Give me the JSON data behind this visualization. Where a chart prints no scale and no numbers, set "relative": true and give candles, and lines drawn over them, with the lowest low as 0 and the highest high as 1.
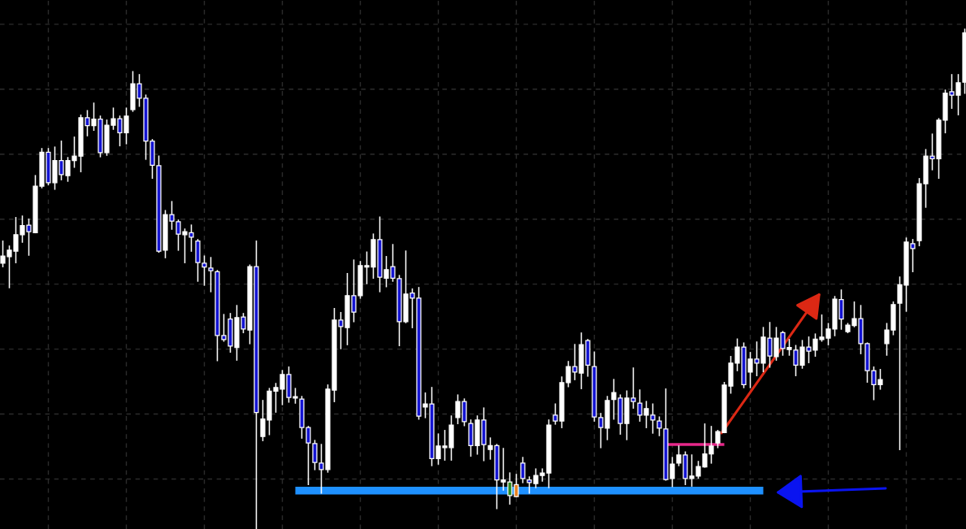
{
  "chart_data": {
    "type": "candlestick",
    "relative": true,
    "grid": true,
    "tick_labels": false,
    "categories": [
      null,
      null,
      null,
      null,
      null,
      null,
      null,
      null,
      null,
      null,
      null,
      null,
      null,
      null,
      null,
      null,
      null,
      null,
      null,
      null,
      null,
      null,
      null,
      null,
      null,
      null,
      null,
      null,
      null,
      null,
      null,
      null,
      null,
      null,
      null,
      null,
      null,
      null,
      null,
      null,
      null,
      null,
      null,
      null,
      null,
      null,
      null,
      null,
      null,
      null,
      null,
      null,
      null,
      null,
      null,
      null,
      null,
      null,
      null,
      null,
      null,
      null,
      null,
      null,
      null,
      null,
      null,
      null,
      null,
      null,
      null,
      null,
      null,
      null,
      null,
      null,
      null,
      null,
      null,
      null,
      null,
      null,
      null,
      null,
      null,
      null,
      null,
      null,
      null,
      null,
      null,
      null,
      null,
      null,
      null,
      null,
      null,
      null,
      null,
      null,
      null,
      null,
      null,
      null,
      null,
      null,
      null,
      null,
      null,
      null,
      null,
      null,
      null,
      null,
      null,
      null,
      null,
      null,
      null,
      null,
      null,
      null,
      null,
      null,
      null,
      null,
      null,
      null,
      null,
      null,
      null,
      null,
      null,
      null,
      null,
      null,
      null,
      null,
      null,
      null,
      null,
      null,
      null,
      null,
      null,
      null,
      null,
      null,
      null
    ],
    "series": [
      {
        "color": "#ffffff",
        "colors": [
          "#ffffff",
          "#ffffff",
          "#ffffff",
          "#ffffff",
          "#1414d2",
          "#ffffff",
          "#ffffff",
          "#1414d2",
          "#ffffff",
          "#1414d2",
          "#ffffff",
          "#ffffff",
          "#ffffff",
          "#1414d2",
          "#ffffff",
          "#1414d2",
          "#ffffff",
          "#ffffff",
          "#1414d2",
          "#ffffff",
          "#ffffff",
          "#1414d2",
          "#1414d2",
          "#1414d2",
          "#1414d2",
          "#ffffff",
          "#1414d2",
          "#1414d2",
          "#ffffff",
          "#1414d2",
          "#1414d2",
          "#1414d2",
          "#1414d2",
          "#1414d2",
          "#1414d2",
          "#1414d2",
          "#ffffff",
          "#1414d2",
          "#ffffff",
          "#1414d2",
          "#ffffff",
          "#ffffff",
          "#ffffff",
          "#ffffff",
          "#1414d2",
          "#ffffff",
          "#1414d2",
          "#1414d2",
          "#1414d2",
          "#1414d2",
          "#ffffff",
          "#ffffff",
          "#1414d2",
          "#ffffff",
          "#1414d2",
          "#ffffff",
          "#ffffff",
          "#ffffff",
          "#1414d2",
          "#ffffff",
          "#1414d2",
          "#1414d2",
          "#ffffff",
          "#1414d2",
          "#1414d2",
          "#ffffff",
          "#1414d2",
          "#ffffff",
          "#ffffff",
          "#ffffff",
          "#ffffff",
          "#1414d2",
          "#1414d2",
          "#ffffff",
          "#1414d2",
          "#ffffff",
          "#1414d2",
          "#ffffff",
          "#2a8a1e",
          "#e8821e",
          "#1414d2",
          "#1414d2",
          "#ffffff",
          "#ffffff",
          "#ffffff",
          "#1414d2",
          "#ffffff",
          "#ffffff",
          "#1414d2",
          "#ffffff",
          "#1414d2",
          "#1414d2",
          "#1414d2",
          "#ffffff",
          "#ffffff",
          "#1414d2",
          "#ffffff",
          "#1414d2",
          "#1414d2",
          "#ffffff",
          "#1414d2",
          "#1414d2",
          "#1414d2",
          "#ffffff",
          "#ffffff",
          "#1414d2",
          "#ffffff",
          "#ffffff",
          "#ffffff",
          "#ffffff",
          "#ffffff",
          "#ffffff",
          "#ffffff",
          "#ffffff",
          "#1414d2",
          "#ffffff",
          "#1414d2",
          "#ffffff",
          "#1414d2",
          "#ffffff",
          "#1414d2",
          "#ffffff",
          "#1414d2",
          "#ffffff",
          "#1414d2",
          "#ffffff",
          "#ffffff",
          "#ffffff",
          "#ffffff",
          "#1414d2",
          "#ffffff",
          "#ffffff",
          "#1414d2",
          "#1414d2",
          "#1414d2",
          "#ffffff",
          "#ffffff",
          "#ffffff",
          "#ffffff",
          "#ffffff",
          "#1414d2",
          "#ffffff",
          "#ffffff",
          "#1414d2",
          "#ffffff",
          "#ffffff",
          "#1414d2",
          "#ffffff",
          "#ffffff"
        ],
        "ohlc": [
          [
            0.532,
            0.576,
            0.525,
            0.546
          ],
          [
            0.545,
            0.566,
            0.483,
            0.558
          ],
          [
            0.556,
            0.623,
            0.533,
            0.589
          ],
          [
            0.589,
            0.626,
            0.574,
            0.607
          ],
          [
            0.608,
            0.62,
            0.548,
            0.595
          ],
          [
            0.593,
            0.707,
            0.593,
            0.686
          ],
          [
            0.686,
            0.761,
            0.683,
            0.754
          ],
          [
            0.754,
            0.761,
            0.689,
            0.693
          ],
          [
            0.693,
            0.764,
            0.68,
            0.737
          ],
          [
            0.737,
            0.776,
            0.699,
            0.709
          ],
          [
            0.707,
            0.743,
            0.696,
            0.737
          ],
          [
            0.737,
            0.784,
            0.724,
            0.746
          ],
          [
            0.746,
            0.828,
            0.715,
            0.823
          ],
          [
            0.823,
            0.837,
            0.787,
            0.807
          ],
          [
            0.807,
            0.852,
            0.798,
            0.82
          ],
          [
            0.82,
            0.826,
            0.745,
            0.753
          ],
          [
            0.753,
            0.818,
            0.748,
            0.808
          ],
          [
            0.808,
            0.842,
            0.8,
            0.821
          ],
          [
            0.821,
            0.826,
            0.767,
            0.793
          ],
          [
            0.793,
            0.842,
            0.771,
            0.826
          ],
          [
            0.839,
            0.915,
            0.836,
            0.891
          ],
          [
            0.891,
            0.909,
            0.846,
            0.862
          ],
          [
            0.862,
            0.868,
            0.74,
            0.776
          ],
          [
            0.776,
            0.779,
            0.702,
            0.728
          ],
          [
            0.727,
            0.746,
            0.554,
            0.556
          ],
          [
            0.558,
            0.637,
            0.543,
            0.629
          ],
          [
            0.629,
            0.655,
            0.6,
            0.616
          ],
          [
            0.615,
            0.618,
            0.558,
            0.59
          ],
          [
            0.589,
            0.6,
            0.533,
            0.595
          ],
          [
            0.593,
            0.608,
            0.556,
            0.584
          ],
          [
            0.576,
            0.579,
            0.496,
            0.533
          ],
          [
            0.532,
            0.546,
            0.488,
            0.524
          ],
          [
            0.522,
            0.543,
            0.475,
            0.517
          ],
          [
            0.515,
            0.517,
            0.337,
            0.387
          ],
          [
            0.387,
            0.429,
            0.376,
            0.379
          ],
          [
            0.42,
            0.431,
            0.354,
            0.366
          ],
          [
            0.363,
            0.447,
            0.338,
            0.423
          ],
          [
            0.424,
            0.431,
            0.393,
            0.4
          ],
          [
            0.398,
            0.528,
            0.371,
            0.525
          ],
          [
            0.525,
            0.576,
            0,
            0.233
          ],
          [
            0.185,
            0.257,
            0.177,
            0.22
          ],
          [
            0.218,
            0.281,
            0.189,
            0.276
          ],
          [
            0.276,
            0.291,
            0.234,
            0.283
          ],
          [
            0.28,
            0.317,
            0.249,
            0.309
          ],
          [
            0.309,
            0.324,
            0.254,
            0.263
          ],
          [
            0.262,
            0.281,
            0.252,
            0.265
          ],
          [
            0.26,
            0.265,
            0.182,
            0.203
          ],
          [
            0.203,
            0.205,
            0.089,
            0.172
          ],
          [
            0.171,
            0.177,
            0.119,
            0.133
          ],
          [
            0.132,
            0.169,
            0.072,
            0.119
          ],
          [
            0.119,
            0.288,
            0.114,
            0.28
          ],
          [
            0.278,
            0.441,
            0.255,
            0.418
          ],
          [
            0.418,
            0.433,
            0.361,
            0.405
          ],
          [
            0.403,
            0.511,
            0.369,
            0.467
          ],
          [
            0.467,
            0.538,
            0.415,
            0.434
          ],
          [
            0.467,
            0.535,
            0.462,
            0.527
          ],
          [
            0.524,
            0.554,
            0.491,
            0.527
          ],
          [
            0.524,
            0.59,
            0.502,
            0.579
          ],
          [
            0.579,
            0.624,
            0.475,
            0.504
          ],
          [
            0.502,
            0.545,
            0.485,
            0.519
          ],
          [
            0.525,
            0.569,
            0.496,
            0.502
          ],
          [
            0.501,
            0.507,
            0.367,
            0.415
          ],
          [
            0.415,
            0.556,
            0.413,
            0.47
          ],
          [
            0.472,
            0.48,
            0.403,
            0.462
          ],
          [
            0.462,
            0.483,
            0.22,
            0.226
          ],
          [
            0.244,
            0.272,
            0.223,
            0.25
          ],
          [
            0.25,
            0.283,
            0.127,
            0.141
          ],
          [
            0.141,
            0.19,
            0.13,
            0.166
          ],
          [
            0.163,
            0.197,
            0.138,
            0.166
          ],
          [
            0.163,
            0.226,
            0.138,
            0.208
          ],
          [
            0.223,
            0.268,
            0.211,
            0.255
          ],
          [
            0.255,
            0.26,
            0.207,
            0.215
          ],
          [
            0.211,
            0.218,
            0.146,
            0.167
          ],
          [
            0.167,
            0.226,
            0.15,
            0.218
          ],
          [
            0.218,
            0.242,
            0.137,
            0.169
          ],
          [
            0.159,
            0.182,
            0.14,
            0.167
          ],
          [
            0.167,
            0.169,
            0.041,
            0.098
          ],
          [
            0.094,
            0.161,
            0.078,
            0.098
          ],
          [
            0.094,
            0.112,
            0.05,
            0.067
          ],
          [
            0.065,
            0.109,
            0.065,
            0.089
          ],
          [
            0.132,
            0.143,
            0.093,
            0.101
          ],
          [
            0.098,
            0.104,
            0.072,
            0.093
          ],
          [
            0.091,
            0.12,
            0.083,
            0.107
          ],
          [
            0.107,
            0.12,
            0.096,
            0.112
          ],
          [
            0.112,
            0.218,
            0.083,
            0.208
          ],
          [
            0.228,
            0.25,
            0.21,
            0.216
          ],
          [
            0.216,
            0.304,
            0.203,
            0.293
          ],
          [
            0.293,
            0.335,
            0.285,
            0.325
          ],
          [
            0.325,
            0.369,
            0.299,
            0.314
          ],
          [
            0.312,
            0.392,
            0.281,
            0.369
          ],
          [
            0.377,
            0.379,
            0.306,
            0.328
          ],
          [
            0.325,
            0.354,
            0.216,
            0.224
          ],
          [
            0.223,
            0.231,
            0.163,
            0.203
          ],
          [
            0.202,
            0.265,
            0.179,
            0.257
          ],
          [
            0.259,
            0.299,
            0.22,
            0.273
          ],
          [
            0.262,
            0.268,
            0.19,
            0.211
          ],
          [
            0.211,
            0.276,
            0.179,
            0.262
          ],
          [
            0.262,
            0.322,
            0.242,
            0.255
          ],
          [
            0.252,
            0.278,
            0.216,
            0.228
          ],
          [
            0.228,
            0.255,
            0.203,
            0.241
          ],
          [
            0.228,
            0.25,
            0.192,
            0.218
          ],
          [
            0.216,
            0.224,
            0.187,
            0.202
          ],
          [
            0.2,
            0.28,
            0.098,
            0.099
          ],
          [
            0.101,
            0.143,
            0.085,
            0.13
          ],
          [
            0.132,
            0.166,
            0.127,
            0.148
          ],
          [
            0.148,
            0.154,
            0.089,
            0.101
          ],
          [
            0.101,
            0.148,
            0.086,
            0.106
          ],
          [
            0.106,
            0.135,
            0.102,
            0.125
          ],
          [
            0.124,
            0.21,
            0.124,
            0.15
          ],
          [
            0.15,
            0.205,
            0.132,
            0.166
          ],
          [
            0.172,
            0.197,
            0.163,
            0.195
          ],
          [
            0.193,
            0.293,
            0.193,
            0.288
          ],
          [
            0.286,
            0.345,
            0.272,
            0.332
          ],
          [
            0.332,
            0.38,
            0.317,
            0.364
          ],
          [
            0.364,
            0.372,
            0.283,
            0.289
          ],
          [
            0.314,
            0.353,
            0.283,
            0.34
          ],
          [
            0.34,
            0.374,
            0.307,
            0.332
          ],
          [
            0.332,
            0.403,
            0.315,
            0.384
          ],
          [
            0.382,
            0.413,
            0.324,
            0.346
          ],
          [
            0.345,
            0.403,
            0.338,
            0.382
          ],
          [
            0.393,
            0.395,
            0.348,
            0.361
          ],
          [
            0.359,
            0.379,
            0.348,
            0.363
          ],
          [
            0.358,
            0.367,
            0.307,
            0.328
          ],
          [
            0.328,
            0.377,
            0.322,
            0.364
          ],
          [
            0.364,
            0.384,
            0.333,
            0.356
          ],
          [
            0.358,
            0.39,
            0.346,
            0.38
          ],
          [
            0.379,
            0.428,
            0.376,
            0.384
          ],
          [
            0.382,
            0.411,
            0.369,
            0.4
          ],
          [
            0.4,
            0.465,
            0.387,
            0.46
          ],
          [
            0.459,
            0.478,
            0.4,
            0.42
          ],
          [
            0.395,
            0.411,
            0.393,
            0.408
          ],
          [
            0.407,
            0.454,
            0.405,
            0.421
          ],
          [
            0.421,
            0.447,
            0.351,
            0.371
          ],
          [
            0.371,
            0.372,
            0.294,
            0.317
          ],
          [
            0.317,
            0.324,
            0.259,
            0.289
          ],
          [
            0.289,
            0.319,
            0.28,
            0.299
          ],
          [
            0.371,
            0.411,
            0.348,
            0.398
          ],
          [
            0.398,
            0.454,
            0.389,
            0.449
          ],
          [
            0.452,
            0.504,
            0.159,
            0.489
          ],
          [
            0.488,
            0.582,
            0.436,
            0.574
          ],
          [
            0.571,
            0.579,
            0.515,
            0.561
          ],
          [
            0.577,
            0.701,
            0.567,
            0.691
          ],
          [
            0.691,
            0.759,
            0.644,
            0.746
          ],
          [
            0.746,
            0.79,
            0.719,
            0.741
          ],
          [
            0.741,
            0.821,
            0.702,
            0.818
          ],
          [
            0.818,
            0.878,
            0.793,
            0.872
          ],
          [
            0.875,
            0.909,
            0.842,
            0.868
          ],
          [
            0.868,
            0.909,
            0.829,
            0.893
          ],
          [
            0.894,
            1,
            0.872,
            0.993
          ]
        ]
      },
      {
        "type": "line",
        "color": "#1e90ff",
        "values": [
          null,
          null,
          null,
          null,
          null,
          null,
          null,
          null,
          null,
          null,
          null,
          null,
          null,
          null,
          null,
          null,
          null,
          null,
          null,
          null,
          null,
          null,
          null,
          null,
          null,
          null,
          null,
          null,
          null,
          null,
          null,
          null,
          null,
          null,
          null,
          null,
          null,
          null,
          null,
          null,
          null,
          null,
          null,
          null,
          null,
          0.077,
          0.077,
          0.077,
          0.077,
          0.077,
          0.077,
          0.077,
          0.077,
          0.077,
          0.077,
          0.077,
          0.077,
          0.077,
          0.077,
          0.077,
          0.077,
          0.077,
          0.077,
          0.077,
          0.077,
          0.077,
          0.077,
          0.077,
          0.077,
          0.077,
          0.077,
          0.077,
          0.077,
          0.077,
          0.077,
          0.077,
          0.077,
          0.077,
          0.077,
          0.077,
          0.077,
          0.077,
          0.077,
          0.077,
          0.077,
          0.077,
          0.077,
          0.077,
          0.077,
          0.077,
          0.077,
          0.077,
          0.077,
          0.077,
          0.077,
          0.077,
          0.077,
          0.077,
          0.077,
          0.077,
          0.077,
          0.077,
          0.077,
          0.077,
          0.077,
          0.077,
          0.077,
          0.077,
          0.077,
          0.077,
          0.077,
          0.077,
          0.077,
          0.077,
          0.077,
          0.077,
          0.077,
          0.077,
          null,
          null,
          null,
          null,
          null,
          null,
          null,
          null,
          null,
          null,
          null,
          null,
          null,
          null,
          null,
          null,
          null,
          null,
          null,
          null,
          null,
          null,
          null,
          null,
          null,
          null,
          null,
          null,
          null,
          null,
          null
        ]
      },
      {
        "type": "line",
        "color": "#e6288a",
        "values": [
          null,
          null,
          null,
          null,
          null,
          null,
          null,
          null,
          null,
          null,
          null,
          null,
          null,
          null,
          null,
          null,
          null,
          null,
          null,
          null,
          null,
          null,
          null,
          null,
          null,
          null,
          null,
          null,
          null,
          null,
          null,
          null,
          null,
          null,
          null,
          null,
          null,
          null,
          null,
          null,
          null,
          null,
          null,
          null,
          null,
          null,
          null,
          null,
          null,
          null,
          null,
          null,
          null,
          null,
          null,
          null,
          null,
          null,
          null,
          null,
          null,
          null,
          null,
          null,
          null,
          null,
          null,
          null,
          null,
          null,
          null,
          null,
          null,
          null,
          null,
          null,
          null,
          null,
          null,
          null,
          null,
          null,
          null,
          null,
          null,
          null,
          null,
          null,
          null,
          null,
          null,
          null,
          null,
          null,
          null,
          null,
          null,
          null,
          null,
          null,
          null,
          null,
          0.169,
          0.169,
          0.169,
          0.169,
          0.169,
          0.169,
          0.169,
          0.169,
          0.169,
          0.169,
          null,
          null,
          null,
          null,
          null,
          null,
          null,
          null,
          null,
          null,
          null,
          null,
          null,
          null,
          null,
          null,
          null,
          null,
          null,
          null,
          null,
          null,
          null,
          null,
          null,
          null,
          null,
          null,
          null,
          null,
          null,
          null,
          null,
          null,
          null,
          null,
          null
        ]
      }
    ]
  }
}
